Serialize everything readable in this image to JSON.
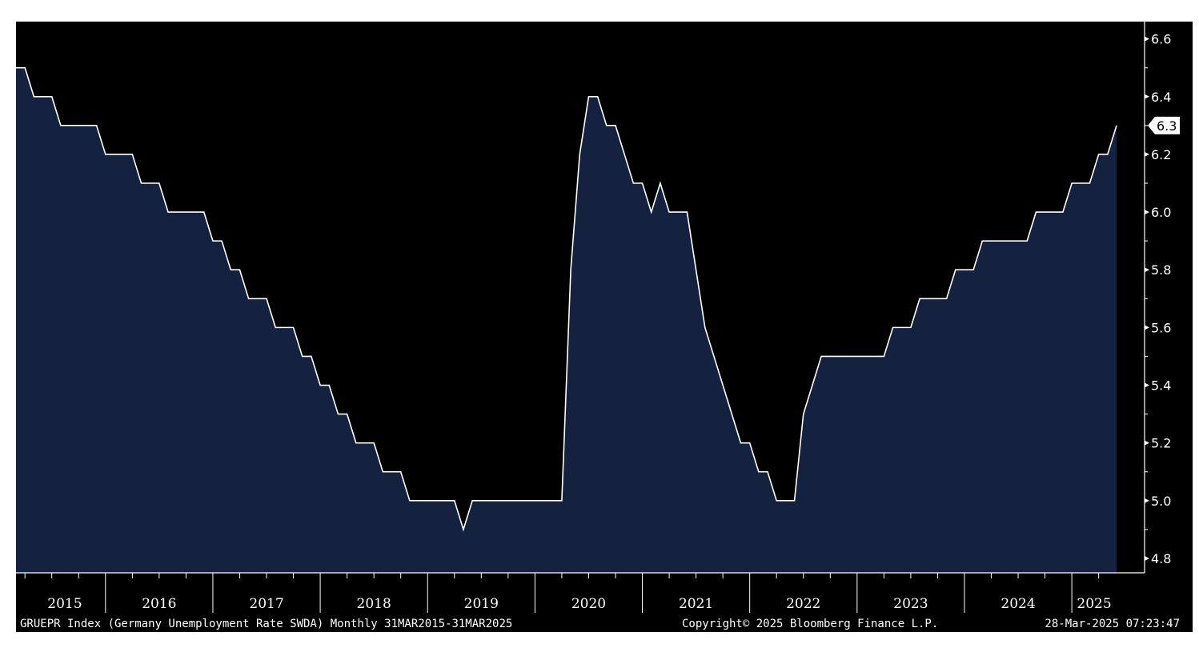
{
  "chart_data": {
    "type": "area",
    "title": "",
    "xlabel": "",
    "ylabel": "",
    "start": "2015-03",
    "end": "2025-03",
    "x_tick_labels": [
      "2015",
      "2016",
      "2017",
      "2018",
      "2019",
      "2020",
      "2021",
      "2022",
      "2023",
      "2024",
      "2025"
    ],
    "y_ticks": [
      4.8,
      5.0,
      5.2,
      5.4,
      5.6,
      5.8,
      6.0,
      6.2,
      6.4,
      6.6
    ],
    "y_tick_labels": [
      "4.8",
      "5.0",
      "5.2",
      "5.4",
      "5.6",
      "5.8",
      "6.0",
      "6.2",
      "6.4",
      "6.6"
    ],
    "ylim": [
      4.75,
      6.66
    ],
    "series": [
      {
        "name": "",
        "values": [
          6.5,
          6.5,
          6.4,
          6.4,
          6.4,
          6.3,
          6.3,
          6.3,
          6.3,
          6.3,
          6.2,
          6.2,
          6.2,
          6.2,
          6.1,
          6.1,
          6.1,
          6.0,
          6.0,
          6.0,
          6.0,
          6.0,
          5.9,
          5.9,
          5.8,
          5.8,
          5.7,
          5.7,
          5.7,
          5.6,
          5.6,
          5.6,
          5.5,
          5.5,
          5.4,
          5.4,
          5.3,
          5.3,
          5.2,
          5.2,
          5.2,
          5.1,
          5.1,
          5.1,
          5.0,
          5.0,
          5.0,
          5.0,
          5.0,
          5.0,
          4.9,
          5.0,
          5.0,
          5.0,
          5.0,
          5.0,
          5.0,
          5.0,
          5.0,
          5.0,
          5.0,
          5.0,
          5.8,
          6.2,
          6.4,
          6.4,
          6.3,
          6.3,
          6.2,
          6.1,
          6.1,
          6.0,
          6.1,
          6.0,
          6.0,
          6.0,
          5.8,
          5.6,
          5.5,
          5.4,
          5.3,
          5.2,
          5.2,
          5.1,
          5.1,
          5.0,
          5.0,
          5.0,
          5.3,
          5.4,
          5.5,
          5.5,
          5.5,
          5.5,
          5.5,
          5.5,
          5.5,
          5.5,
          5.6,
          5.6,
          5.6,
          5.7,
          5.7,
          5.7,
          5.7,
          5.8,
          5.8,
          5.8,
          5.9,
          5.9,
          5.9,
          5.9,
          5.9,
          5.9,
          6.0,
          6.0,
          6.0,
          6.0,
          6.1,
          6.1,
          6.1,
          6.2,
          6.2,
          6.3
        ]
      }
    ],
    "last_value_label": "6.3",
    "grid": false,
    "colors": {
      "background": "#000000",
      "area_fill": "#15223f",
      "line": "#ffffff",
      "text": "#ffffff"
    }
  },
  "footer": {
    "description": "GRUEPR Index (Germany Unemployment Rate SWDA)  Monthly 31MAR2015-31MAR2025",
    "copyright": "Copyright© 2025 Bloomberg Finance L.P.",
    "timestamp": "28-Mar-2025 07:23:47"
  }
}
